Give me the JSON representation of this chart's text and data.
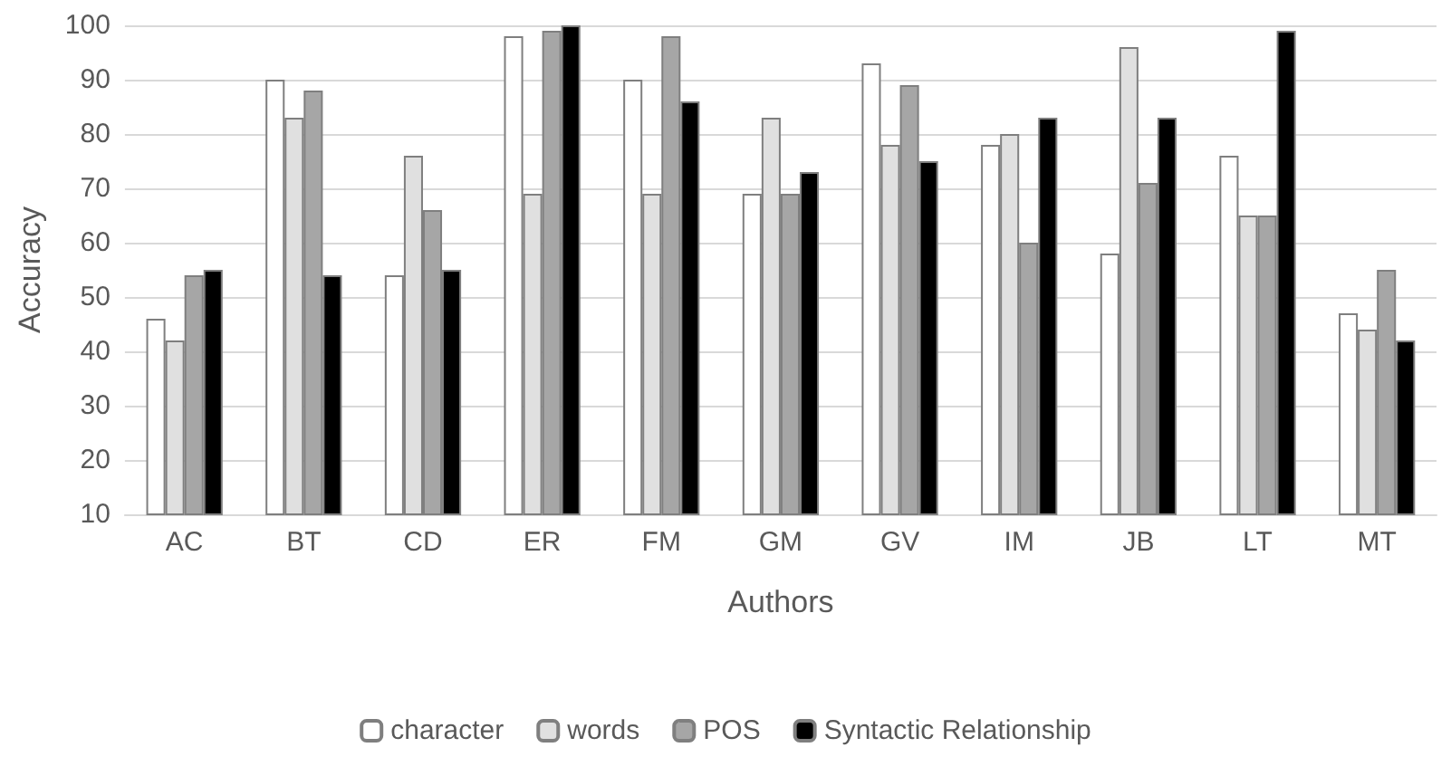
{
  "chart_data": {
    "type": "bar",
    "xlabel": "Authors",
    "ylabel": "Accuracy",
    "categories": [
      "AC",
      "BT",
      "CD",
      "ER",
      "FM",
      "GM",
      "GV",
      "IM",
      "JB",
      "LT",
      "MT"
    ],
    "series": [
      {
        "name": "character",
        "color": "#ffffff",
        "values": [
          46,
          90,
          54,
          98,
          90,
          69,
          93,
          78,
          58,
          76,
          47
        ]
      },
      {
        "name": "words",
        "color": "#e0e0e0",
        "values": [
          42,
          83,
          76,
          69,
          69,
          83,
          78,
          80,
          96,
          65,
          44
        ]
      },
      {
        "name": "POS",
        "color": "#a6a6a6",
        "values": [
          54,
          88,
          66,
          99,
          98,
          69,
          89,
          60,
          71,
          65,
          55
        ]
      },
      {
        "name": "Syntactic Relationship",
        "color": "#000000",
        "values": [
          55,
          54,
          55,
          100,
          86,
          73,
          75,
          83,
          83,
          99,
          42
        ]
      }
    ],
    "ylim": [
      10,
      100
    ],
    "yticks": [
      10,
      20,
      30,
      40,
      50,
      60,
      70,
      80,
      90,
      100
    ],
    "grid": "y",
    "legend": "bottom"
  }
}
